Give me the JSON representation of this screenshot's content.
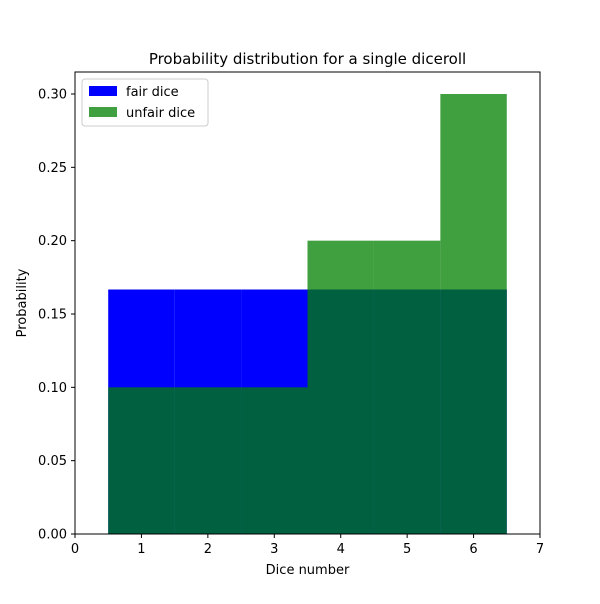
{
  "chart_data": {
    "type": "bar",
    "title": "Probability distribution for a single diceroll",
    "xlabel": "Dice number",
    "ylabel": "Probability",
    "xlim": [
      0,
      7
    ],
    "ylim": [
      0,
      0.315
    ],
    "xticks": [
      0,
      1,
      2,
      3,
      4,
      5,
      6,
      7
    ],
    "xtick_labels": [
      "0",
      "1",
      "2",
      "3",
      "4",
      "5",
      "6",
      "7"
    ],
    "yticks": [
      0,
      0.05,
      0.1,
      0.15,
      0.2,
      0.25,
      0.3
    ],
    "ytick_labels": [
      "0.00",
      "0.05",
      "0.10",
      "0.15",
      "0.20",
      "0.25",
      "0.30"
    ],
    "categories": [
      1,
      2,
      3,
      4,
      5,
      6
    ],
    "bar_width": 1,
    "grid": false,
    "legend_position": "top-left",
    "series": [
      {
        "name": "fair dice",
        "values": [
          0.1667,
          0.1667,
          0.1667,
          0.1667,
          0.1667,
          0.1667
        ],
        "color": "#0000ff",
        "opacity": 1
      },
      {
        "name": "unfair dice",
        "values": [
          0.1,
          0.1,
          0.1,
          0.2,
          0.2,
          0.3
        ],
        "color": "#008000",
        "opacity": 0.75
      }
    ]
  }
}
